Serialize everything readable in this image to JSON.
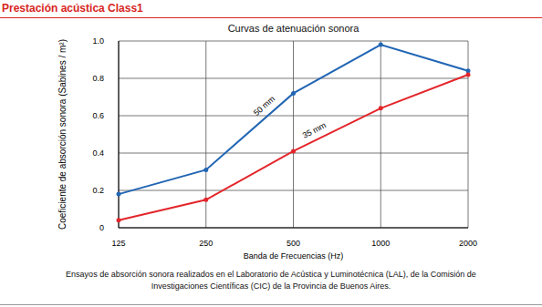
{
  "chart_data": {
    "type": "line",
    "header": "Prestación acústica Class1",
    "title": "Curvas de atenuación sonora",
    "x_label": "Banda de Frecuencias (Hz)",
    "y_label": "Coeficiente de absorción sonora (Sabines / m²)",
    "footnote": "Ensayos de absorción sonora realizados en el Laboratorio de Acústica y Luminotécnica (LAL), de la Comisión de Investigaciones Científicas (CIC) de la Provincia de Buenos Aires.",
    "categories": [
      "125",
      "250",
      "500",
      "1000",
      "2000"
    ],
    "series": [
      {
        "name": "50 mm",
        "color": "#2266b4",
        "marker": "circle",
        "values": [
          0.18,
          0.31,
          0.72,
          0.98,
          0.84
        ]
      },
      {
        "name": "35 mm",
        "color": "#e3262b",
        "marker": "circle",
        "values": [
          0.04,
          0.15,
          0.41,
          0.64,
          0.82
        ]
      }
    ],
    "ylim": [
      0,
      1
    ],
    "yticks": [
      0,
      0.2,
      0.4,
      0.6,
      0.8,
      {
        "value": 1,
        "label": "1.0"
      }
    ],
    "grid": true
  }
}
